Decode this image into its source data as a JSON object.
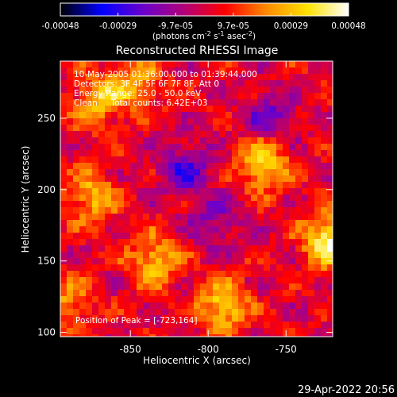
{
  "colorbar": {
    "tick_labels": [
      "-0.00048",
      "-0.00029",
      "-9.7e-05",
      "9.7e-05",
      "0.00029",
      "0.00048"
    ],
    "unit_label": "(photons cm-2 s-1 asec-2)",
    "unit_parts": [
      "(photons cm",
      "-2",
      " s",
      "-1",
      " asec",
      "-2",
      ")"
    ],
    "range": [
      -0.00048,
      0.00048
    ],
    "colors": [
      "#000000",
      "#0000ff",
      "#6a00cc",
      "#b0007a",
      "#ff0000",
      "#ff8a00",
      "#ffe200",
      "#ffffff"
    ]
  },
  "chart_data": {
    "type": "heatmap",
    "title": "Reconstructed RHESSI Image",
    "xlabel": "Heliocentric X (arcsec)",
    "ylabel": "Heliocentric Y (arcsec)",
    "xlim": [
      -895,
      -720
    ],
    "ylim": [
      97,
      290
    ],
    "x_ticks": [
      -850,
      -800,
      -750
    ],
    "x_tick_labels": [
      "-850",
      "-800",
      "-750"
    ],
    "y_ticks": [
      100,
      150,
      200,
      250
    ],
    "y_tick_labels": [
      "100",
      "150",
      "200",
      "250"
    ],
    "annotations": [
      "10-May-2005 01:36:00.000 to 01:39:44.000",
      "Detectors: 3F 4F 5F 6F 7F 8F, Att 0",
      "Energy Range: 25.0 - 50.0 keV",
      "Clean     Total counts: 6.42E+03"
    ],
    "peak_label": "Position of Peak = [-723,164]",
    "peak": [
      -723,
      164
    ],
    "bright_sources": [
      {
        "x": -723,
        "y": 164,
        "level": 1.0
      },
      {
        "x": -765,
        "y": 218,
        "level": 0.85
      },
      {
        "x": -790,
        "y": 118,
        "level": 0.8
      },
      {
        "x": -870,
        "y": 262,
        "level": 0.7
      },
      {
        "x": -835,
        "y": 150,
        "level": 0.7
      },
      {
        "x": -875,
        "y": 195,
        "level": 0.65
      },
      {
        "x": -845,
        "y": 275,
        "level": 0.55
      },
      {
        "x": -890,
        "y": 120,
        "level": 0.5
      }
    ],
    "dark_regions": [
      {
        "x": -815,
        "y": 215,
        "level": -0.6
      },
      {
        "x": -760,
        "y": 250,
        "level": -0.5
      },
      {
        "x": -795,
        "y": 178,
        "level": -0.4
      }
    ]
  },
  "footer": {
    "date_stamp": "29-Apr-2022 20:56"
  }
}
